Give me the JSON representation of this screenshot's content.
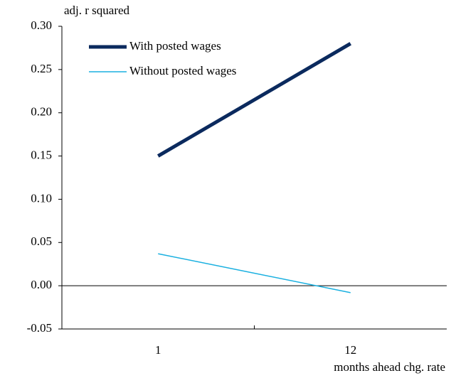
{
  "chart_data": {
    "type": "line",
    "y_label": "adj. r squared",
    "x_label": "months ahead chg. rate",
    "categories": [
      "1",
      "12"
    ],
    "series": [
      {
        "name": "With posted wages",
        "color": "#0b2a5e",
        "values": [
          0.15,
          0.28
        ]
      },
      {
        "name": "Without posted wages",
        "color": "#1ab0e0",
        "values": [
          0.037,
          -0.008
        ]
      }
    ],
    "ylim": [
      -0.05,
      0.3
    ],
    "yticks": [
      {
        "value": -0.05,
        "label": "-0.05"
      },
      {
        "value": 0,
        "label": "0.00"
      },
      {
        "value": 0.05,
        "label": "0.05"
      },
      {
        "value": 0.1,
        "label": "0.10"
      },
      {
        "value": 0.15,
        "label": "0.15"
      },
      {
        "value": 0.2,
        "label": "0.20"
      },
      {
        "value": 0.25,
        "label": "0.25"
      },
      {
        "value": 0.3,
        "label": "0.30"
      }
    ],
    "legend": "upper left"
  }
}
